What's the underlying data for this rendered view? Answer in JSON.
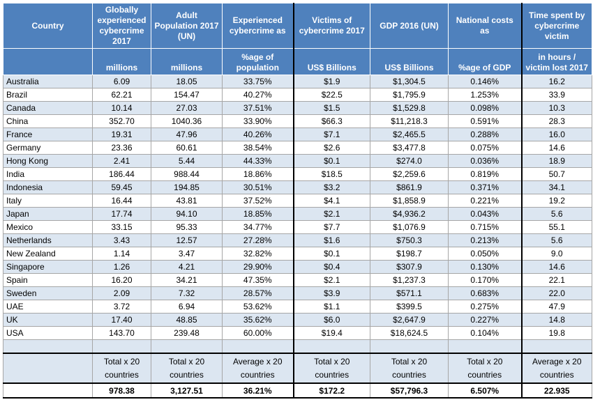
{
  "header": {
    "titles": [
      "Country",
      "Globally experienced cybercrime 2017",
      "Adult Population 2017 (UN)",
      "Experienced cybercrime as",
      "Victims of cybercrime 2017",
      "GDP  2016 (UN)",
      "National costs as",
      "Time spent by cybercrime victim"
    ],
    "units": [
      "",
      "millions",
      "millions",
      "%age of population",
      "US$ Billions",
      "US$ Billions",
      "%age of GDP",
      "in hours / victim lost 2017"
    ]
  },
  "rows": [
    [
      "Australia",
      "6.09",
      "18.05",
      "33.75%",
      "$1.9",
      "$1,304.5",
      "0.146%",
      "16.2"
    ],
    [
      "Brazil",
      "62.21",
      "154.47",
      "40.27%",
      "$22.5",
      "$1,795.9",
      "1.253%",
      "33.9"
    ],
    [
      "Canada",
      "10.14",
      "27.03",
      "37.51%",
      "$1.5",
      "$1,529.8",
      "0.098%",
      "10.3"
    ],
    [
      "China",
      "352.70",
      "1040.36",
      "33.90%",
      "$66.3",
      "$11,218.3",
      "0.591%",
      "28.3"
    ],
    [
      "France",
      "19.31",
      "47.96",
      "40.26%",
      "$7.1",
      "$2,465.5",
      "0.288%",
      "16.0"
    ],
    [
      "Germany",
      "23.36",
      "60.61",
      "38.54%",
      "$2.6",
      "$3,477.8",
      "0.075%",
      "14.6"
    ],
    [
      "Hong Kong",
      "2.41",
      "5.44",
      "44.33%",
      "$0.1",
      "$274.0",
      "0.036%",
      "18.9"
    ],
    [
      "India",
      "186.44",
      "988.44",
      "18.86%",
      "$18.5",
      "$2,259.6",
      "0.819%",
      "50.7"
    ],
    [
      "Indonesia",
      "59.45",
      "194.85",
      "30.51%",
      "$3.2",
      "$861.9",
      "0.371%",
      "34.1"
    ],
    [
      "Italy",
      "16.44",
      "43.81",
      "37.52%",
      "$4.1",
      "$1,858.9",
      "0.221%",
      "19.2"
    ],
    [
      "Japan",
      "17.74",
      "94.10",
      "18.85%",
      "$2.1",
      "$4,936.2",
      "0.043%",
      "5.6"
    ],
    [
      "Mexico",
      "33.15",
      "95.33",
      "34.77%",
      "$7.7",
      "$1,076.9",
      "0.715%",
      "55.1"
    ],
    [
      "Netherlands",
      "3.43",
      "12.57",
      "27.28%",
      "$1.6",
      "$750.3",
      "0.213%",
      "5.6"
    ],
    [
      "New Zealand",
      "1.14",
      "3.47",
      "32.82%",
      "$0.1",
      "$198.7",
      "0.050%",
      "9.0"
    ],
    [
      "Singapore",
      "1.26",
      "4.21",
      "29.90%",
      "$0.4",
      "$307.9",
      "0.130%",
      "14.6"
    ],
    [
      "Spain",
      "16.20",
      "34.21",
      "47.35%",
      "$2.1",
      "$1,237.3",
      "0.170%",
      "22.1"
    ],
    [
      "Sweden",
      "2.09",
      "7.32",
      "28.57%",
      "$3.9",
      "$571.1",
      "0.683%",
      "22.0"
    ],
    [
      "UAE",
      "3.72",
      "6.94",
      "53.62%",
      "$1.1",
      "$399.5",
      "0.275%",
      "47.9"
    ],
    [
      "UK",
      "17.40",
      "48.85",
      "35.62%",
      "$6.0",
      "$2,647.9",
      "0.227%",
      "14.8"
    ],
    [
      "USA",
      "143.70",
      "239.48",
      "60.00%",
      "$19.4",
      "$18,624.5",
      "0.104%",
      "19.8"
    ]
  ],
  "footer": {
    "labels": [
      "",
      "Total x 20 countries",
      "Total x 20 countries",
      "Average x 20 countries",
      "Total x 20 countries",
      "Total x 20 countries",
      "Total x 20 countries",
      "Average x 20 countries"
    ],
    "values": [
      "",
      "978.38",
      "3,127.51",
      "36.21%",
      "$172.2",
      "$57,796.3",
      "6.507%",
      "22.935"
    ]
  }
}
